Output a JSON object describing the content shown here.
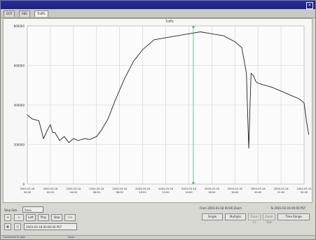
{
  "window": {
    "title": "",
    "plot_title": "Traffic"
  },
  "tabs": [
    {
      "label": "DCP"
    },
    {
      "label": "ABS"
    },
    {
      "label": "Traffic"
    }
  ],
  "colors": {
    "titlebar": "#262ea3",
    "series": "#202020",
    "marker": "#36c66a"
  },
  "chart_data": {
    "type": "line",
    "title": "Traffic",
    "xlabel": "",
    "ylabel": "",
    "ylim": [
      0,
      800000
    ],
    "yticks": [
      "800000",
      "600000",
      "400000",
      "200000",
      "0"
    ],
    "xticks": [
      "2003-03-18 00:00",
      "2003-03-18 02:00",
      "2003-03-18 04:00",
      "2003-03-18 06:00",
      "2003-03-18 08:00",
      "2003-03-18 10:00",
      "2003-03-18 12:00",
      "2003-03-18 14:00",
      "2003-03-18 16:00",
      "2003-03-18 18:00",
      "2003-03-18 20:00",
      "2003-03-18 22:00",
      "2003-03-19 00:00"
    ],
    "x": [
      0,
      0.2,
      0.5,
      0.7,
      0.9,
      1.0,
      1.1,
      1.2,
      1.4,
      1.6,
      1.8,
      2.0,
      2.2,
      2.5,
      2.7,
      3.0,
      3.2,
      3.5,
      3.8,
      4.2,
      4.6,
      5.0,
      5.5,
      6.0,
      6.5,
      7.0,
      7.5,
      8.0,
      8.5,
      9.0,
      9.3,
      9.5,
      9.6,
      9.7,
      9.8,
      9.9,
      10.0,
      10.3,
      10.6,
      11.0,
      11.4,
      11.8,
      12.0,
      12.1,
      12.2
    ],
    "y": [
      350000,
      330000,
      320000,
      230000,
      280000,
      300000,
      260000,
      260000,
      220000,
      240000,
      210000,
      230000,
      220000,
      230000,
      225000,
      240000,
      270000,
      330000,
      420000,
      530000,
      620000,
      680000,
      730000,
      740000,
      750000,
      760000,
      770000,
      760000,
      750000,
      720000,
      690000,
      560000,
      180000,
      560000,
      550000,
      520000,
      510000,
      500000,
      490000,
      470000,
      450000,
      430000,
      410000,
      320000,
      250000
    ],
    "marker_x": 7.2,
    "grid": true
  },
  "controls": {
    "step_size_label": "Step Size",
    "step_size_value": "5min",
    "start_time_label": "2003-03-18 00:00:00",
    "start_time_value": "2003-03-18 00:00:00 PST",
    "range_text_1": "From 2003-03-18 00:00 Zoom",
    "range_text_2": "To 2003-03-19 00:00 PST",
    "left_label": "Left",
    "play_label": "Play",
    "step_label": "Step",
    "ff_label": ">>",
    "back_label": "<",
    "range_button_1": "Single",
    "range_button_2": "Multiple",
    "range_button_3": "Zoom In",
    "range_button_4": "Zoom Out",
    "range_button_5": "Time Range"
  },
  "status": {
    "left": "Connected to port",
    "right": "Done"
  }
}
